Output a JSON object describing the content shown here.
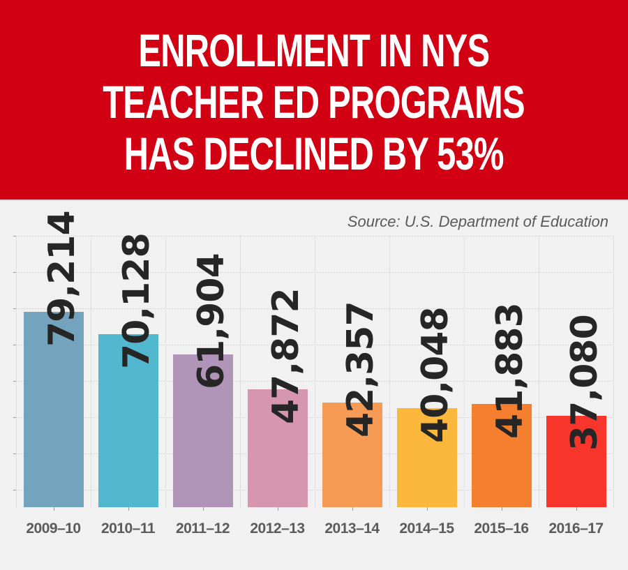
{
  "header": {
    "title_lines": [
      "ENROLLMENT IN NYS",
      "TEACHER ED PROGRAMS",
      "HAS DECLINED BY 53%"
    ],
    "background_color": "#d10012"
  },
  "source": "Source: U.S. Department of Education",
  "chart_data": {
    "type": "bar",
    "title": "Enrollment in NYS Teacher Ed Programs Has Declined by 53%",
    "subtitle": "Source: U.S. Department of Education",
    "xlabel": "",
    "ylabel": "",
    "categories": [
      "2009–10",
      "2010–11",
      "2011–12",
      "2012–13",
      "2013–14",
      "2014–15",
      "2015–16",
      "2016–17"
    ],
    "values": [
      79214,
      70128,
      61904,
      47872,
      42357,
      40048,
      41883,
      37080
    ],
    "value_labels": [
      "79,214",
      "70,128",
      "61,904",
      "47,872",
      "42,357",
      "40,048",
      "41,883",
      "37,080"
    ],
    "colors": [
      "#74a3bd",
      "#52b8cf",
      "#b195b8",
      "#d696ad",
      "#f59b55",
      "#fcb83c",
      "#f47f2f",
      "#f8352b"
    ],
    "grid": true,
    "y_tick_labels_visible": false,
    "legend": null
  }
}
